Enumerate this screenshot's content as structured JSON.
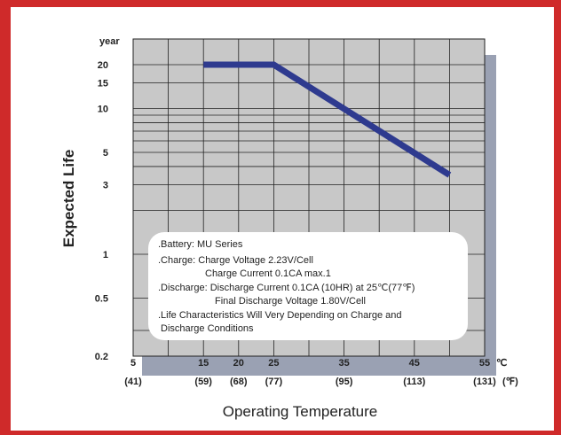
{
  "chart_data": {
    "type": "line",
    "ylabel": "Expected Life",
    "yunit": "year",
    "xlabel": "Operating Temperature",
    "x_unit_c": "℃",
    "x_unit_f": "(℉)",
    "y_scale": "log",
    "ylim": [
      0.2,
      30
    ],
    "xlim": [
      5,
      55
    ],
    "y_ticks": [
      "0.2",
      "0.5",
      "1",
      "3",
      "5",
      "10",
      "15",
      "20"
    ],
    "x_ticks_c": [
      "5",
      "15",
      "20",
      "25",
      "35",
      "45",
      "55"
    ],
    "x_ticks_f": [
      "(41)",
      "(59)",
      "(68)",
      "(77)",
      "(95)",
      "(113)",
      "(131)"
    ],
    "series": [
      {
        "x": [
          15,
          25,
          50
        ],
        "y": [
          20,
          20,
          3.5
        ]
      }
    ],
    "grid": true,
    "colors": {
      "line": "#2e3a8f",
      "grid": "#222222",
      "plot_bg": "#c8c8c8",
      "shadow": "#9aa1b3"
    }
  },
  "notes": [
    ".Battery: MU Series",
    ".Charge: Charge Voltage 2.23V/Cell",
    "Charge Current 0.1CA max.1",
    ".Discharge: Discharge Current 0.1CA (10HR) at 25℃(77℉)",
    "Final Discharge Voltage 1.80V/Cell",
    ".Life Characteristics Will Very Depending on Charge and",
    "Discharge Conditions"
  ],
  "colors": {
    "border": "#cf2a2a"
  }
}
